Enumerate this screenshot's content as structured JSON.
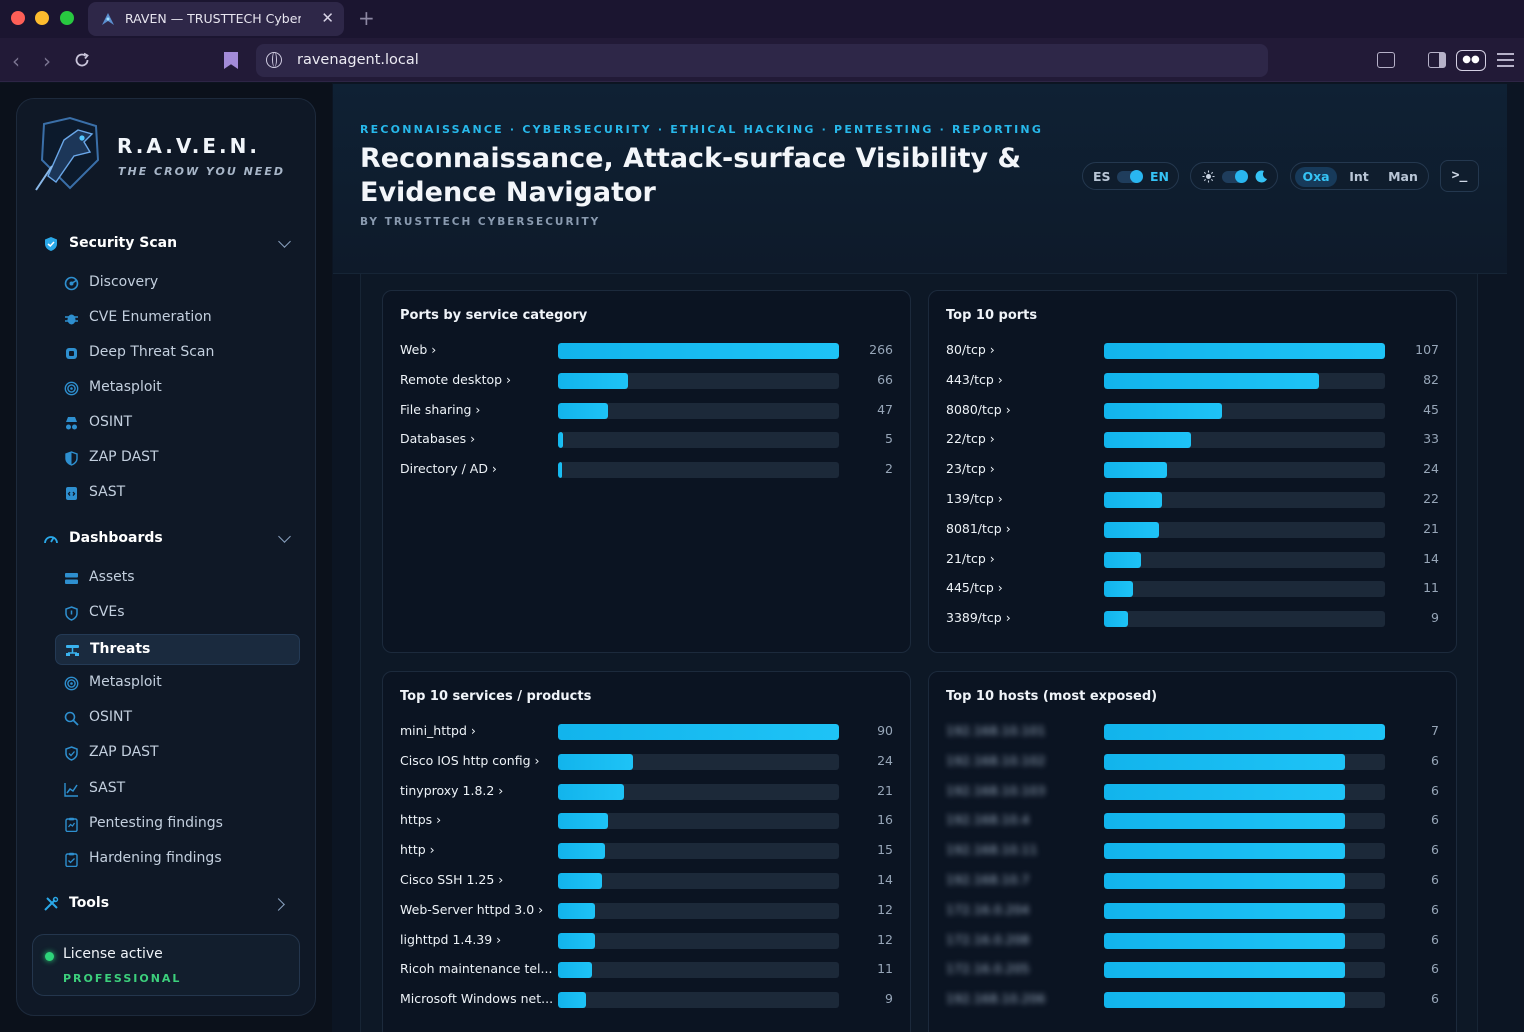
{
  "browser": {
    "tab_title": "RAVEN — TRUSTTECH Cybers",
    "url": "ravenagent.local"
  },
  "sidebar": {
    "brand": "R.A.V.E.N.",
    "tagline": "THE CROW YOU NEED",
    "sections": [
      {
        "label": "Security Scan",
        "icon": "shield-icon",
        "expanded": true,
        "items": [
          {
            "label": "Discovery",
            "icon": "radar-icon"
          },
          {
            "label": "CVE Enumeration",
            "icon": "bug-icon"
          },
          {
            "label": "Deep Threat Scan",
            "icon": "chip-icon"
          },
          {
            "label": "Metasploit",
            "icon": "target-icon"
          },
          {
            "label": "OSINT",
            "icon": "spy-icon"
          },
          {
            "label": "ZAP DAST",
            "icon": "shield-half-icon"
          },
          {
            "label": "SAST",
            "icon": "code-file-icon"
          }
        ]
      },
      {
        "label": "Dashboards",
        "icon": "gauge-icon",
        "expanded": true,
        "items": [
          {
            "label": "Assets",
            "icon": "server-icon"
          },
          {
            "label": "CVEs",
            "icon": "shield-outline-icon"
          },
          {
            "label": "Threats",
            "icon": "network-icon",
            "active": true
          },
          {
            "label": "Metasploit",
            "icon": "target-icon"
          },
          {
            "label": "OSINT",
            "icon": "magnifier-icon"
          },
          {
            "label": "ZAP DAST",
            "icon": "shield-outline-icon"
          },
          {
            "label": "SAST",
            "icon": "trend-chart-icon"
          },
          {
            "label": "Pentesting findings",
            "icon": "clipboard-icon"
          },
          {
            "label": "Hardening findings",
            "icon": "clipboard-check-icon"
          }
        ]
      },
      {
        "label": "Tools",
        "icon": "tools-icon",
        "expanded": false,
        "items": []
      }
    ],
    "license": {
      "status": "License active",
      "tier": "PROFESSIONAL",
      "status_color": "#2ed47a"
    }
  },
  "header": {
    "kicker": "RECONNAISSANCE · CYBERSECURITY · ETHICAL HACKING · PENTESTING · REPORTING",
    "title": "Reconnaissance, Attack-surface Visibility & Evidence Navigator",
    "byline": "BY TRUSTTECH CYBERSECURITY",
    "lang_left": "ES",
    "lang_right": "EN",
    "theme_left_icon": "sun-icon",
    "theme_right_icon": "moon-icon",
    "modes": [
      {
        "label": "Oxa",
        "active": true
      },
      {
        "label": "Int",
        "active": false
      },
      {
        "label": "Man",
        "active": false
      }
    ],
    "terminal_label": ">_"
  },
  "accent_color": "#1ec3f6",
  "chart_data": [
    {
      "type": "bar",
      "title": "Ports by service category",
      "categories": [
        "Web",
        "Remote desktop",
        "File sharing",
        "Databases",
        "Directory / AD"
      ],
      "values": [
        266,
        66,
        47,
        5,
        2
      ]
    },
    {
      "type": "bar",
      "title": "Top 10 ports",
      "categories": [
        "80/tcp",
        "443/tcp",
        "8080/tcp",
        "22/tcp",
        "23/tcp",
        "139/tcp",
        "8081/tcp",
        "21/tcp",
        "445/tcp",
        "3389/tcp"
      ],
      "values": [
        107,
        82,
        45,
        33,
        24,
        22,
        21,
        14,
        11,
        9
      ]
    },
    {
      "type": "bar",
      "title": "Top 10 services / products",
      "categories": [
        "mini_httpd",
        "Cisco IOS http config",
        "tinyproxy 1.8.2",
        "https",
        "http",
        "Cisco SSH 1.25",
        "Web-Server httpd 3.0",
        "lighttpd 1.4.39",
        "Ricoh maintenance tel...",
        "Microsoft Windows net..."
      ],
      "values": [
        90,
        24,
        21,
        16,
        15,
        14,
        12,
        12,
        11,
        9
      ]
    },
    {
      "type": "bar",
      "title": "Top 10 hosts (most exposed)",
      "categories_redacted": true,
      "categories": [
        "",
        "",
        "",
        "",
        "",
        "",
        "",
        "",
        "",
        ""
      ],
      "values": [
        7,
        6,
        6,
        6,
        6,
        6,
        6,
        6,
        6,
        6
      ]
    }
  ]
}
